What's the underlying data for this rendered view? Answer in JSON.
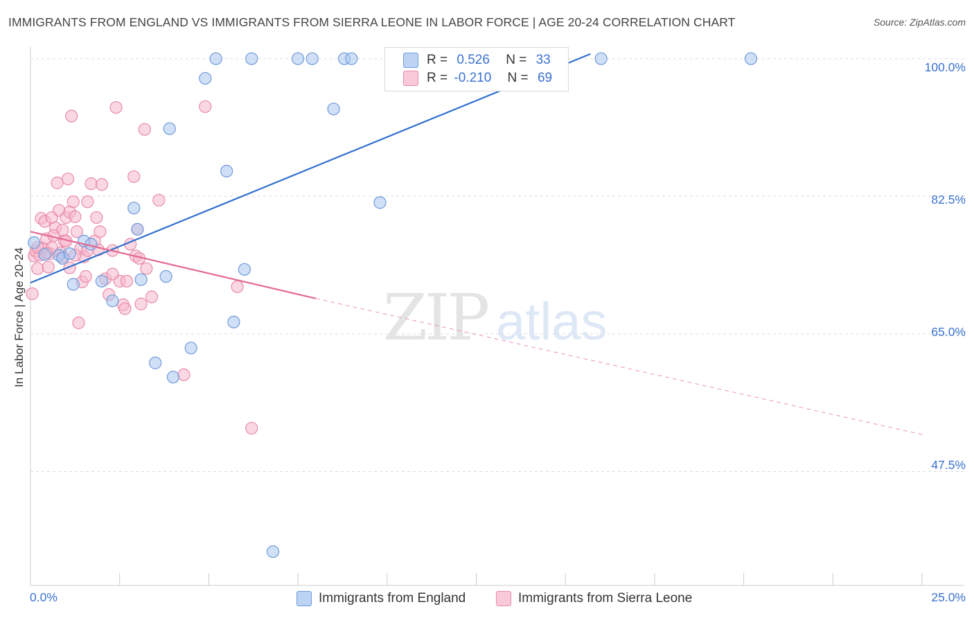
{
  "header": {
    "title": "IMMIGRANTS FROM ENGLAND VS IMMIGRANTS FROM SIERRA LEONE IN LABOR FORCE | AGE 20-24 CORRELATION CHART",
    "source": "Source: ZipAtlas.com"
  },
  "watermark": {
    "zip": "ZIP",
    "atlas": "atlas"
  },
  "legend": {
    "england": {
      "r_label": "R =",
      "r_value": "0.526",
      "n_label": "N =",
      "n_value": "33"
    },
    "sierra_leone": {
      "r_label": "R =",
      "r_value": "-0.210",
      "n_label": "N =",
      "n_value": "69"
    }
  },
  "bottom_legend": {
    "england": "Immigrants from England",
    "sierra_leone": "Immigrants from Sierra Leone"
  },
  "axes": {
    "ylabel": "In Labor Force | Age 20-24",
    "x_min_label": "0.0%",
    "x_max_label": "25.0%",
    "y_ticks": [
      "100.0%",
      "82.5%",
      "65.0%",
      "47.5%"
    ]
  },
  "colors": {
    "england_fill": "#a9c6f0",
    "england_stroke": "#6f9ad8",
    "england_line": "#2f6fce",
    "sierra_fill": "#f5b8cc",
    "sierra_stroke": "#e88aa9",
    "sierra_line": "#e36891",
    "tick_text": "#3a72d0",
    "grid": "#dddddd"
  },
  "chart_data": {
    "type": "scatter",
    "xlim": [
      0,
      25
    ],
    "ylim": [
      33,
      102
    ],
    "x_unit": "%",
    "y_unit": "%",
    "y_gridlines": [
      100,
      82.5,
      65,
      47.5
    ],
    "grid": true,
    "legend_position": "top-center",
    "series": [
      {
        "name": "Immigrants from England",
        "R": 0.526,
        "N": 33,
        "trend": {
          "x": [
            0,
            15.7
          ],
          "y": [
            71.5,
            100.6
          ]
        },
        "points": [
          [
            0.1,
            76.6
          ],
          [
            0.4,
            75.1
          ],
          [
            0.8,
            75.0
          ],
          [
            0.9,
            74.6
          ],
          [
            1.2,
            71.3
          ],
          [
            1.5,
            76.8
          ],
          [
            1.7,
            76.4
          ],
          [
            2.0,
            71.7
          ],
          [
            2.3,
            69.2
          ],
          [
            2.9,
            81.0
          ],
          [
            3.0,
            78.3
          ],
          [
            3.1,
            71.9
          ],
          [
            3.5,
            61.3
          ],
          [
            3.8,
            72.3
          ],
          [
            3.9,
            91.1
          ],
          [
            4.0,
            59.5
          ],
          [
            4.5,
            63.2
          ],
          [
            4.9,
            97.5
          ],
          [
            5.2,
            100.0
          ],
          [
            5.5,
            85.7
          ],
          [
            5.7,
            66.5
          ],
          [
            6.0,
            73.2
          ],
          [
            6.2,
            100.0
          ],
          [
            6.8,
            37.3
          ],
          [
            7.5,
            100.0
          ],
          [
            7.9,
            100.0
          ],
          [
            8.5,
            93.6
          ],
          [
            8.8,
            100.0
          ],
          [
            9.0,
            100.0
          ],
          [
            9.8,
            81.7
          ],
          [
            16.0,
            100.0
          ],
          [
            20.2,
            100.0
          ],
          [
            1.1,
            75.2
          ]
        ]
      },
      {
        "name": "Immigrants from Sierra Leone",
        "R": -0.21,
        "N": 69,
        "trend": {
          "x": [
            0,
            8.0
          ],
          "y": [
            78.0,
            69.5
          ],
          "dashed_x": [
            8.0,
            25
          ],
          "dashed_y": [
            69.5,
            52.2
          ]
        },
        "points": [
          [
            0.05,
            70.1
          ],
          [
            0.1,
            74.9
          ],
          [
            0.15,
            75.5
          ],
          [
            0.2,
            73.3
          ],
          [
            0.25,
            75.0
          ],
          [
            0.3,
            79.7
          ],
          [
            0.35,
            75.9
          ],
          [
            0.4,
            79.3
          ],
          [
            0.45,
            77.1
          ],
          [
            0.5,
            73.5
          ],
          [
            0.55,
            75.2
          ],
          [
            0.6,
            76.0
          ],
          [
            0.6,
            79.8
          ],
          [
            0.7,
            78.5
          ],
          [
            0.75,
            84.2
          ],
          [
            0.8,
            80.7
          ],
          [
            0.85,
            75.3
          ],
          [
            0.9,
            78.2
          ],
          [
            0.9,
            74.8
          ],
          [
            0.95,
            76.8
          ],
          [
            1.0,
            79.8
          ],
          [
            1.0,
            76.8
          ],
          [
            1.05,
            84.7
          ],
          [
            1.1,
            80.5
          ],
          [
            1.1,
            73.4
          ],
          [
            1.15,
            92.7
          ],
          [
            1.2,
            81.8
          ],
          [
            1.25,
            79.9
          ],
          [
            1.3,
            78.0
          ],
          [
            1.35,
            66.4
          ],
          [
            1.4,
            75.8
          ],
          [
            1.45,
            71.6
          ],
          [
            1.5,
            74.8
          ],
          [
            1.55,
            72.3
          ],
          [
            1.6,
            81.8
          ],
          [
            1.7,
            84.1
          ],
          [
            1.8,
            76.8
          ],
          [
            1.85,
            79.8
          ],
          [
            1.9,
            75.7
          ],
          [
            1.95,
            78.0
          ],
          [
            2.0,
            84.0
          ],
          [
            2.1,
            72.0
          ],
          [
            2.2,
            70.0
          ],
          [
            2.3,
            75.6
          ],
          [
            2.4,
            93.8
          ],
          [
            2.5,
            71.7
          ],
          [
            2.6,
            68.7
          ],
          [
            2.65,
            68.2
          ],
          [
            2.7,
            71.7
          ],
          [
            2.8,
            76.4
          ],
          [
            2.9,
            85.0
          ],
          [
            2.95,
            74.9
          ],
          [
            3.0,
            78.3
          ],
          [
            3.05,
            74.6
          ],
          [
            3.1,
            68.8
          ],
          [
            3.2,
            91.0
          ],
          [
            3.25,
            73.3
          ],
          [
            3.4,
            69.7
          ],
          [
            3.6,
            82.0
          ],
          [
            4.3,
            59.8
          ],
          [
            4.9,
            93.9
          ],
          [
            5.8,
            71.0
          ],
          [
            6.2,
            53.0
          ],
          [
            1.6,
            75.6
          ],
          [
            0.65,
            77.5
          ],
          [
            0.45,
            75.3
          ],
          [
            1.25,
            75.0
          ],
          [
            0.2,
            76.0
          ],
          [
            2.3,
            72.6
          ]
        ]
      }
    ]
  }
}
